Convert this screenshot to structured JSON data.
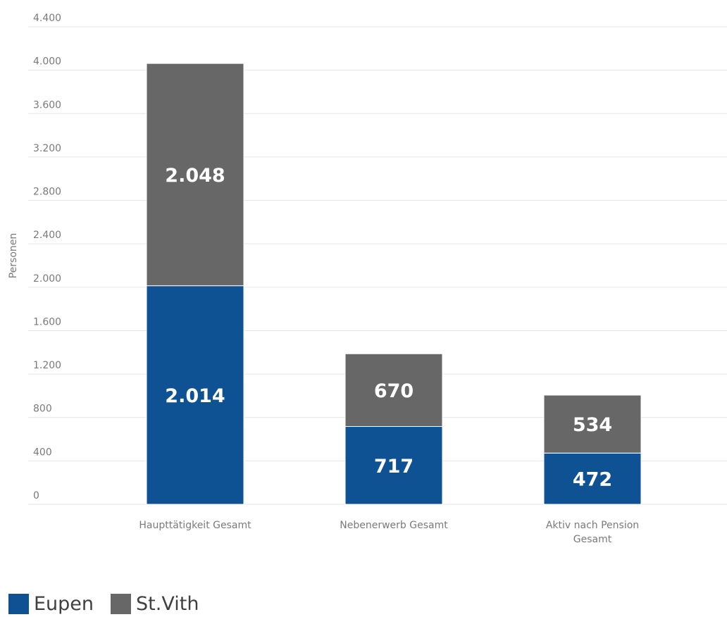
{
  "chart_data": {
    "type": "bar",
    "stacked": true,
    "categories": [
      [
        "Haupttätigkeit Gesamt"
      ],
      [
        "Nebenerwerb Gesamt"
      ],
      [
        "Aktiv nach Pension",
        "Gesamt"
      ]
    ],
    "series": [
      {
        "name": "Eupen",
        "values": [
          2014,
          717,
          472
        ],
        "labels": [
          "2.014",
          "717",
          "472"
        ],
        "color": "#0f5294"
      },
      {
        "name": "St.Vith",
        "values": [
          2048,
          670,
          534
        ],
        "labels": [
          "2.048",
          "670",
          "534"
        ],
        "color": "#676767"
      }
    ],
    "ylabel": "Personen",
    "ylim": [
      0,
      4400
    ],
    "yticks": [
      {
        "value": 0,
        "label": "0"
      },
      {
        "value": 400,
        "label": "400"
      },
      {
        "value": 800,
        "label": "800"
      },
      {
        "value": 1200,
        "label": "1.200"
      },
      {
        "value": 1600,
        "label": "1.600"
      },
      {
        "value": 2000,
        "label": "2.000"
      },
      {
        "value": 2400,
        "label": "2.400"
      },
      {
        "value": 2800,
        "label": "2.800"
      },
      {
        "value": 3200,
        "label": "3.200"
      },
      {
        "value": 3600,
        "label": "3.600"
      },
      {
        "value": 4000,
        "label": "4.000"
      },
      {
        "value": 4400,
        "label": "4.400"
      }
    ],
    "grid": true,
    "legend_position": "bottom-left",
    "gridline_color": "#e6e6e6"
  },
  "legend": {
    "items": [
      {
        "label": "Eupen",
        "color": "#0f5294"
      },
      {
        "label": "St.Vith",
        "color": "#676767"
      }
    ]
  }
}
